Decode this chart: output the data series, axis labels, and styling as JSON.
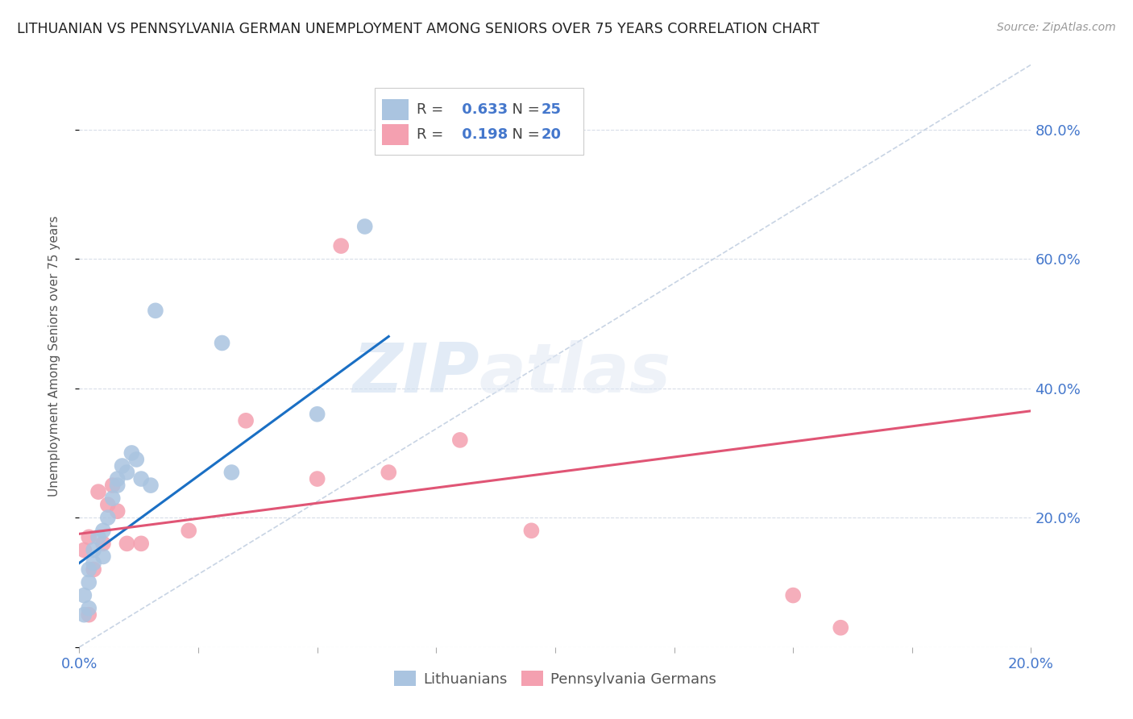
{
  "title": "LITHUANIAN VS PENNSYLVANIA GERMAN UNEMPLOYMENT AMONG SENIORS OVER 75 YEARS CORRELATION CHART",
  "source": "Source: ZipAtlas.com",
  "ylabel": "Unemployment Among Seniors over 75 years",
  "xmin": 0.0,
  "xmax": 0.2,
  "ymin": 0.0,
  "ymax": 0.9,
  "yticks": [
    0.0,
    0.2,
    0.4,
    0.6,
    0.8
  ],
  "ytick_labels": [
    "",
    "20.0%",
    "40.0%",
    "60.0%",
    "80.0%"
  ],
  "xticks": [
    0.0,
    0.025,
    0.05,
    0.075,
    0.1,
    0.125,
    0.15,
    0.175,
    0.2
  ],
  "lithuanian_R": 0.633,
  "lithuanian_N": 25,
  "pennger_R": 0.198,
  "pennger_N": 20,
  "lithuanian_color": "#aac4e0",
  "pennger_color": "#f4a0b0",
  "lithuanian_line_color": "#1a6fc4",
  "pennger_line_color": "#e05575",
  "diagonal_color": "#c8d4e4",
  "lithuanian_x": [
    0.001,
    0.001,
    0.002,
    0.002,
    0.002,
    0.003,
    0.003,
    0.004,
    0.005,
    0.005,
    0.006,
    0.007,
    0.008,
    0.008,
    0.009,
    0.01,
    0.011,
    0.012,
    0.013,
    0.015,
    0.016,
    0.03,
    0.032,
    0.05,
    0.06
  ],
  "lithuanian_y": [
    0.05,
    0.08,
    0.06,
    0.1,
    0.12,
    0.13,
    0.15,
    0.17,
    0.14,
    0.18,
    0.2,
    0.23,
    0.25,
    0.26,
    0.28,
    0.27,
    0.3,
    0.29,
    0.26,
    0.25,
    0.52,
    0.47,
    0.27,
    0.36,
    0.65
  ],
  "pennger_x": [
    0.001,
    0.002,
    0.002,
    0.003,
    0.004,
    0.005,
    0.006,
    0.007,
    0.008,
    0.01,
    0.013,
    0.023,
    0.035,
    0.05,
    0.055,
    0.065,
    0.08,
    0.095,
    0.15,
    0.16
  ],
  "pennger_y": [
    0.15,
    0.17,
    0.05,
    0.12,
    0.24,
    0.16,
    0.22,
    0.25,
    0.21,
    0.16,
    0.16,
    0.18,
    0.35,
    0.26,
    0.62,
    0.27,
    0.32,
    0.18,
    0.08,
    0.03
  ],
  "background_color": "#ffffff",
  "grid_color": "#d8dde8",
  "watermark_zip": "ZIP",
  "watermark_atlas": "atlas",
  "blue_line_x0": 0.0,
  "blue_line_x1": 0.065,
  "blue_line_y0": 0.13,
  "blue_line_y1": 0.48,
  "pink_line_x0": 0.0,
  "pink_line_x1": 0.2,
  "pink_line_y0": 0.175,
  "pink_line_y1": 0.365
}
